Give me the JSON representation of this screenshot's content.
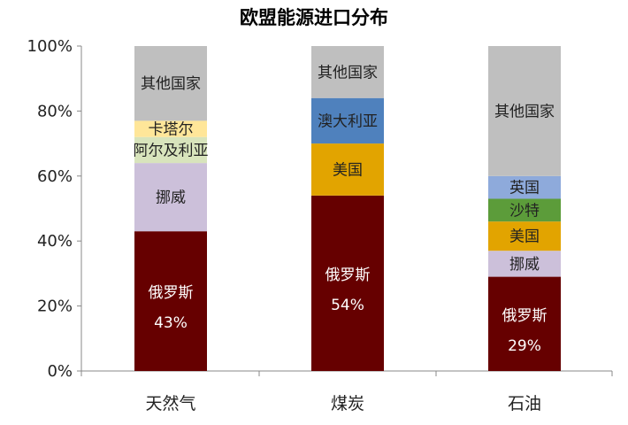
{
  "chart_data": {
    "type": "bar",
    "stacked": true,
    "title": "欧盟能源进口分布",
    "xlabel": "",
    "ylabel": "",
    "ylim": [
      0,
      100
    ],
    "y_ticks": [
      "0%",
      "20%",
      "40%",
      "60%",
      "80%",
      "100%"
    ],
    "grid": false,
    "categories": [
      "天然气",
      "煤炭",
      "石油"
    ],
    "stacks": [
      {
        "category": "天然气",
        "segments": [
          {
            "label": "俄罗斯",
            "value": 43,
            "value_label": "43%",
            "color": "#660000",
            "text_color": "#ffffff"
          },
          {
            "label": "挪威",
            "value": 21,
            "value_label": "",
            "color": "#ccc0da",
            "text_color": "#222222"
          },
          {
            "label": "阿尔及利亚",
            "value": 8,
            "value_label": "",
            "color": "#d8e4bc",
            "text_color": "#222222"
          },
          {
            "label": "卡塔尔",
            "value": 5,
            "value_label": "",
            "color": "#ffe699",
            "text_color": "#222222"
          },
          {
            "label": "其他国家",
            "value": 23,
            "value_label": "",
            "color": "#bfbfbf",
            "text_color": "#222222"
          }
        ]
      },
      {
        "category": "煤炭",
        "segments": [
          {
            "label": "俄罗斯",
            "value": 54,
            "value_label": "54%",
            "color": "#660000",
            "text_color": "#ffffff"
          },
          {
            "label": "美国",
            "value": 16,
            "value_label": "",
            "color": "#e2a400",
            "text_color": "#222222"
          },
          {
            "label": "澳大利亚",
            "value": 14,
            "value_label": "",
            "color": "#4f81bd",
            "text_color": "#222222"
          },
          {
            "label": "其他国家",
            "value": 16,
            "value_label": "",
            "color": "#bfbfbf",
            "text_color": "#222222"
          }
        ]
      },
      {
        "category": "石油",
        "segments": [
          {
            "label": "俄罗斯",
            "value": 29,
            "value_label": "29%",
            "color": "#660000",
            "text_color": "#ffffff"
          },
          {
            "label": "挪威",
            "value": 8,
            "value_label": "",
            "color": "#ccc0da",
            "text_color": "#222222"
          },
          {
            "label": "美国",
            "value": 9,
            "value_label": "",
            "color": "#e2a400",
            "text_color": "#222222"
          },
          {
            "label": "沙特",
            "value": 7,
            "value_label": "",
            "color": "#5c9c3a",
            "text_color": "#222222"
          },
          {
            "label": "英国",
            "value": 7,
            "value_label": "",
            "color": "#8eaadb",
            "text_color": "#222222"
          },
          {
            "label": "其他国家",
            "value": 40,
            "value_label": "",
            "color": "#bfbfbf",
            "text_color": "#222222"
          }
        ]
      }
    ]
  }
}
